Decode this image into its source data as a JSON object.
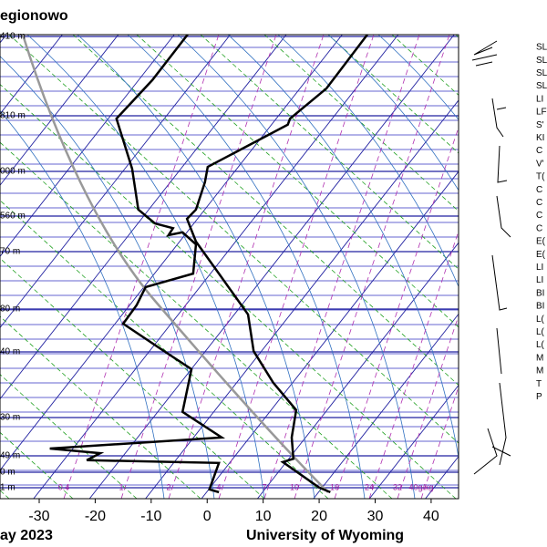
{
  "chart_data": {
    "type": "skewt",
    "title": "egionowo",
    "date_label": "ay 2023",
    "source": "University of Wyoming",
    "xlim": [
      -37,
      44.9
    ],
    "xticks": [
      -30,
      -20,
      -10,
      0,
      10,
      20,
      30,
      40
    ],
    "ylim": [
      0,
      100
    ],
    "height_labels": [
      "410 m",
      "810 m",
      "000 m",
      "560 m",
      "70 m",
      "80 m",
      "40 m",
      "30 m",
      "49 m",
      "0 m",
      "1 m"
    ],
    "mixing_ratio_labels": [
      "0.4",
      "1",
      "2",
      "4",
      "7",
      "10",
      "16",
      "24",
      "32",
      "40g/kg"
    ],
    "stations": [
      "SL",
      "SL",
      "SL",
      "SL",
      "LI",
      "LF",
      "S'",
      "KI",
      "C",
      "V'",
      "T(",
      "C",
      "C",
      "C",
      "C",
      "E(",
      "E(",
      "LI",
      "LI",
      "BI",
      "BI",
      "L(",
      "L(",
      "L(",
      "M",
      "M",
      "T",
      "P"
    ],
    "series": [
      {
        "name": "dewpoint",
        "color": "#000000",
        "x": [
          -3.5,
          -9.8,
          -16.2,
          -13.4,
          -12.3,
          -9.3,
          -6.1,
          -6.9,
          -4.4,
          -2.0,
          -2.5,
          -11.0,
          -12.6,
          -15.0,
          -7.7,
          -2.8,
          -4.4,
          2.6,
          -28.1,
          -19.1,
          -21.5,
          2.1,
          0.4,
          2.1
        ],
        "values": [
          100,
          90.2,
          81.9,
          71.1,
          62.3,
          59.3,
          58.3,
          56.8,
          57.4,
          54.8,
          48.5,
          45.6,
          41.7,
          37.7,
          31.8,
          27.9,
          18.7,
          13.2,
          10.8,
          9.8,
          8.3,
          7.7,
          2.0,
          1.4
        ]
      },
      {
        "name": "temperature",
        "color": "#000000",
        "x": [
          28.6,
          21.3,
          14.8,
          14.4,
          0.1,
          -0.4,
          -2.0,
          -3.6,
          -2.0,
          2.1,
          7.3,
          8.3,
          11.8,
          15.9,
          15.1,
          15.4,
          13.5,
          20.0,
          22.0
        ],
        "values": [
          100,
          88.4,
          81.9,
          80.6,
          71.5,
          68.2,
          62.3,
          60.3,
          55.4,
          48.5,
          39.7,
          31.8,
          25.0,
          19.1,
          13.2,
          8.6,
          7.9,
          2.4,
          1.4
        ]
      }
    ]
  }
}
